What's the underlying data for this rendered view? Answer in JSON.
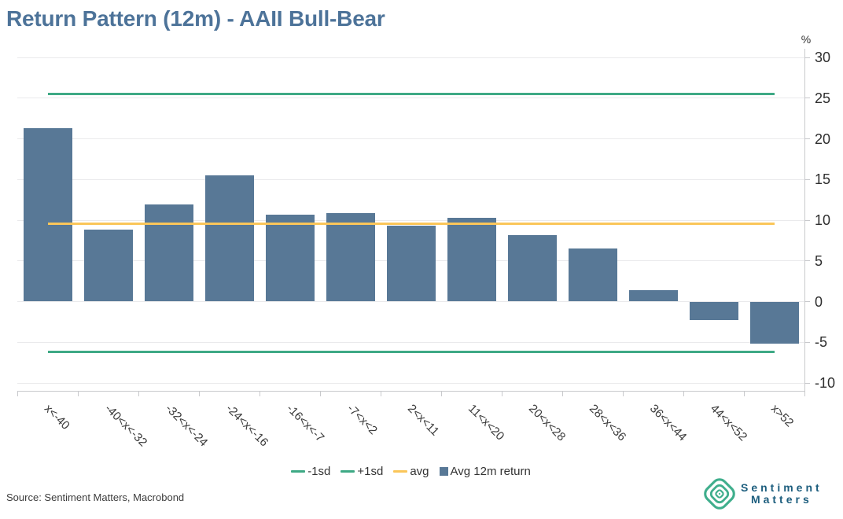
{
  "title": "Return Pattern (12m) - AAII Bull-Bear",
  "source": "Source: Sentiment Matters, Macrobond",
  "logo": {
    "line1": "Sentiment",
    "line2": "Matters"
  },
  "colors": {
    "title": "#4d7399",
    "bar": "#587896",
    "sd_line": "#3ea985",
    "avg_line": "#fac65a",
    "logo_green": "#3fae8c",
    "logo_text": "#1d5e7e"
  },
  "legend": {
    "items": [
      {
        "label": "-1sd",
        "type": "line",
        "color": "#3ea985"
      },
      {
        "label": "+1sd",
        "type": "line",
        "color": "#3ea985"
      },
      {
        "label": "avg",
        "type": "line",
        "color": "#fac65a"
      },
      {
        "label": "Avg 12m return",
        "type": "square",
        "color": "#587896"
      }
    ]
  },
  "chart_data": {
    "type": "bar",
    "title": "Return Pattern (12m) - AAII Bull-Bear",
    "categories": [
      "x<-40",
      "-40<x<-32",
      "-32<x<-24",
      "-24<x<-16",
      "-16<x<-7",
      "-7<x<2",
      "2<x<11",
      "11<x<20",
      "20<x<28",
      "28<x<36",
      "36<x<44",
      "44<x<52",
      "x>52"
    ],
    "series": [
      {
        "name": "Avg 12m return",
        "values": [
          21.3,
          8.8,
          11.9,
          15.5,
          10.7,
          10.9,
          9.3,
          10.3,
          8.2,
          6.5,
          1.4,
          -2.3,
          -5.2
        ]
      }
    ],
    "reference_lines": [
      {
        "name": "+1sd",
        "value": 25.5,
        "color": "#3ea985"
      },
      {
        "name": "-1sd",
        "value": -6.2,
        "color": "#3ea985"
      },
      {
        "name": "avg",
        "value": 9.6,
        "color": "#fac65a"
      }
    ],
    "xlabel": "",
    "ylabel": "%",
    "ylim": [
      -11,
      31
    ],
    "yticks": [
      30,
      25,
      20,
      15,
      10,
      5,
      0,
      -5,
      -10
    ],
    "bar_color": "#587896",
    "grid": true,
    "legend_position": "bottom"
  }
}
